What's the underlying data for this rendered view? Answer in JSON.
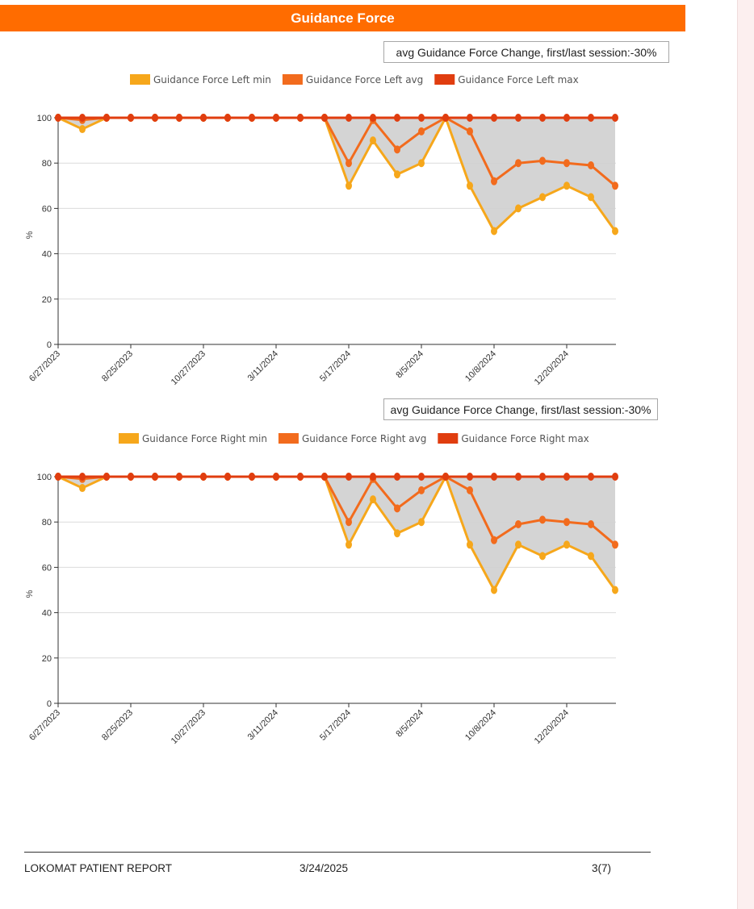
{
  "header": {
    "title": "Guidance Force"
  },
  "colors": {
    "header_bg": "#ff6c00",
    "min": "#f6a71b",
    "avg": "#f26b1d",
    "max": "#e03d0f",
    "band_fill": "#cfcfcf",
    "grid": "#dcdcdc",
    "axis": "#333333"
  },
  "summaries": {
    "left": "avg Guidance Force Change, first/last session:-30%",
    "right": "avg Guidance Force Change, first/last session:-30%"
  },
  "footer": {
    "title": "LOKOMAT PATIENT REPORT",
    "date": "3/24/2025",
    "page": "3(7)"
  },
  "chart_data": [
    {
      "type": "area",
      "ylabel": "%",
      "ylim": [
        0,
        100
      ],
      "yticks": [
        "0",
        "20",
        "40",
        "60",
        "80",
        "100"
      ],
      "x_tick_labels": [
        "6/27/2023",
        "8/25/2023",
        "10/27/2023",
        "3/11/2024",
        "5/17/2024",
        "8/5/2024",
        "10/8/2024",
        "12/20/2024"
      ],
      "x_tick_label_every": 3,
      "grid": "horizontal",
      "legend_position": "top",
      "series": [
        {
          "name": "Guidance Force Left min",
          "role": "min",
          "values": [
            100,
            95,
            100,
            100,
            100,
            100,
            100,
            100,
            100,
            100,
            100,
            100,
            70,
            90,
            75,
            80,
            100,
            70,
            50,
            60,
            65,
            70,
            65,
            50
          ]
        },
        {
          "name": "Guidance Force Left avg",
          "role": "avg",
          "values": [
            100,
            99,
            100,
            100,
            100,
            100,
            100,
            100,
            100,
            100,
            100,
            100,
            80,
            99,
            86,
            94,
            100,
            94,
            72,
            80,
            81,
            80,
            79,
            70
          ]
        },
        {
          "name": "Guidance Force Left max",
          "role": "max",
          "values": [
            100,
            100,
            100,
            100,
            100,
            100,
            100,
            100,
            100,
            100,
            100,
            100,
            100,
            100,
            100,
            100,
            100,
            100,
            100,
            100,
            100,
            100,
            100,
            100
          ]
        }
      ]
    },
    {
      "type": "area",
      "ylabel": "%",
      "ylim": [
        0,
        100
      ],
      "yticks": [
        "0",
        "20",
        "40",
        "60",
        "80",
        "100"
      ],
      "x_tick_labels": [
        "6/27/2023",
        "8/25/2023",
        "10/27/2023",
        "3/11/2024",
        "5/17/2024",
        "8/5/2024",
        "10/8/2024",
        "12/20/2024"
      ],
      "x_tick_label_every": 3,
      "grid": "horizontal",
      "legend_position": "top",
      "series": [
        {
          "name": "Guidance Force Right min",
          "role": "min",
          "values": [
            100,
            95,
            100,
            100,
            100,
            100,
            100,
            100,
            100,
            100,
            100,
            100,
            70,
            90,
            75,
            80,
            100,
            70,
            50,
            70,
            65,
            70,
            65,
            50
          ]
        },
        {
          "name": "Guidance Force Right avg",
          "role": "avg",
          "values": [
            100,
            99,
            100,
            100,
            100,
            100,
            100,
            100,
            100,
            100,
            100,
            100,
            80,
            99,
            86,
            94,
            100,
            94,
            72,
            79,
            81,
            80,
            79,
            70
          ]
        },
        {
          "name": "Guidance Force Right max",
          "role": "max",
          "values": [
            100,
            100,
            100,
            100,
            100,
            100,
            100,
            100,
            100,
            100,
            100,
            100,
            100,
            100,
            100,
            100,
            100,
            100,
            100,
            100,
            100,
            100,
            100,
            100
          ]
        }
      ]
    }
  ]
}
